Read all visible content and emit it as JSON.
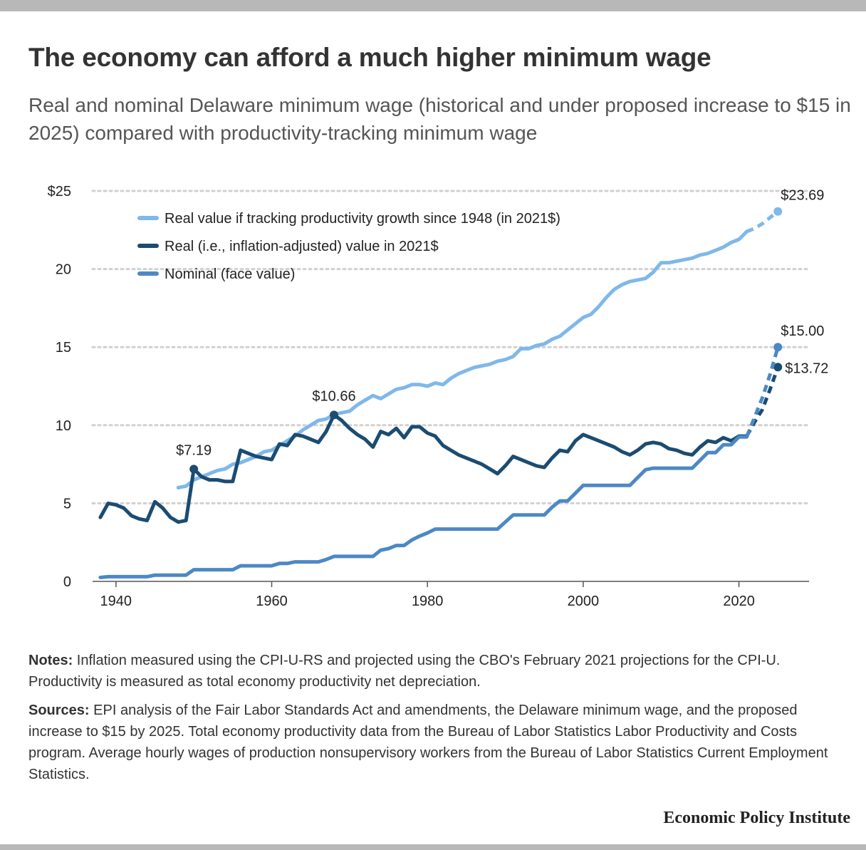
{
  "title": "The economy can afford a much higher minimum wage",
  "subtitle": "Real and nominal Delaware minimum wage (historical and under proposed increase to $15 in 2025) compared with productivity-tracking minimum wage",
  "notes": {
    "notes_label": "Notes:",
    "notes_text": "Inflation measured using the CPI-U-RS and projected using the CBO's February 2021 projections for the CPI-U. Productivity is measured as total economy productivity net depreciation.",
    "sources_label": "Sources:",
    "sources_text": "EPI analysis of the Fair Labor Standards Act and amendments, the Delaware minimum wage, and the proposed increase to $15 by 2025. Total economy productivity data from the Bureau of Labor Statistics Labor Productivity and Costs program. Average hourly wages of production nonsupervisory workers from the Bureau of Labor Statistics Current Employment Statistics."
  },
  "footer": "Economic Policy Institute",
  "chart_data": {
    "type": "line",
    "grid": true,
    "legend_position": "top-left",
    "xlim": [
      1937,
      2029
    ],
    "ylim": [
      0,
      25
    ],
    "x_ticks": [
      1940,
      1960,
      1980,
      2000,
      2020
    ],
    "y_ticks": [
      {
        "value": 0,
        "label": "0"
      },
      {
        "value": 5,
        "label": "5"
      },
      {
        "value": 10,
        "label": "10"
      },
      {
        "value": 15,
        "label": "15"
      },
      {
        "value": 20,
        "label": "20"
      },
      {
        "value": 25,
        "label": "$25"
      }
    ],
    "projection_start": 2021,
    "series": [
      {
        "name": "Real value if tracking productivity growth since 1948 (in 2021$)",
        "color": "#7fb8ea",
        "x": [
          1948,
          1949,
          1950,
          1951,
          1952,
          1953,
          1954,
          1955,
          1956,
          1957,
          1958,
          1959,
          1960,
          1961,
          1962,
          1963,
          1964,
          1965,
          1966,
          1967,
          1968,
          1969,
          1970,
          1971,
          1972,
          1973,
          1974,
          1975,
          1976,
          1977,
          1978,
          1979,
          1980,
          1981,
          1982,
          1983,
          1984,
          1985,
          1986,
          1987,
          1988,
          1989,
          1990,
          1991,
          1992,
          1993,
          1994,
          1995,
          1996,
          1997,
          1998,
          1999,
          2000,
          2001,
          2002,
          2003,
          2004,
          2005,
          2006,
          2007,
          2008,
          2009,
          2010,
          2011,
          2012,
          2013,
          2014,
          2015,
          2016,
          2017,
          2018,
          2019,
          2020,
          2021,
          2022,
          2023,
          2024,
          2025
        ],
        "values": [
          6.0,
          6.1,
          6.5,
          6.7,
          6.9,
          7.1,
          7.2,
          7.5,
          7.6,
          7.8,
          8.0,
          8.3,
          8.4,
          8.7,
          9.0,
          9.3,
          9.7,
          10.0,
          10.3,
          10.4,
          10.7,
          10.8,
          10.9,
          11.3,
          11.6,
          11.9,
          11.7,
          12.0,
          12.3,
          12.4,
          12.6,
          12.6,
          12.5,
          12.7,
          12.6,
          13.0,
          13.3,
          13.5,
          13.7,
          13.8,
          13.9,
          14.1,
          14.2,
          14.4,
          14.9,
          14.9,
          15.1,
          15.2,
          15.5,
          15.7,
          16.1,
          16.5,
          16.9,
          17.1,
          17.6,
          18.2,
          18.7,
          19.0,
          19.2,
          19.3,
          19.4,
          19.8,
          20.4,
          20.4,
          20.5,
          20.6,
          20.7,
          20.9,
          21.0,
          21.2,
          21.4,
          21.7,
          21.9,
          22.4,
          22.6,
          22.9,
          23.3,
          23.69
        ],
        "end_label": "$23.69"
      },
      {
        "name": "Real (i.e., inflation-adjusted) value in 2021$",
        "color": "#1b4c72",
        "x": [
          1938,
          1939,
          1940,
          1941,
          1942,
          1943,
          1944,
          1945,
          1946,
          1947,
          1948,
          1949,
          1950,
          1951,
          1952,
          1953,
          1954,
          1955,
          1956,
          1957,
          1958,
          1959,
          1960,
          1961,
          1962,
          1963,
          1964,
          1965,
          1966,
          1967,
          1968,
          1969,
          1970,
          1971,
          1972,
          1973,
          1974,
          1975,
          1976,
          1977,
          1978,
          1979,
          1980,
          1981,
          1982,
          1983,
          1984,
          1985,
          1986,
          1987,
          1988,
          1989,
          1990,
          1991,
          1992,
          1993,
          1994,
          1995,
          1996,
          1997,
          1998,
          1999,
          2000,
          2001,
          2002,
          2003,
          2004,
          2005,
          2006,
          2007,
          2008,
          2009,
          2010,
          2011,
          2012,
          2013,
          2014,
          2015,
          2016,
          2017,
          2018,
          2019,
          2020,
          2021,
          2022,
          2023,
          2024,
          2025
        ],
        "values": [
          4.1,
          5.0,
          4.9,
          4.7,
          4.2,
          4.0,
          3.9,
          5.1,
          4.7,
          4.1,
          3.8,
          3.9,
          7.19,
          6.7,
          6.5,
          6.5,
          6.4,
          6.4,
          8.4,
          8.2,
          8.0,
          7.9,
          7.8,
          8.8,
          8.7,
          9.4,
          9.3,
          9.1,
          8.9,
          9.6,
          10.66,
          10.3,
          9.8,
          9.4,
          9.1,
          8.6,
          9.6,
          9.4,
          9.8,
          9.2,
          9.9,
          9.9,
          9.5,
          9.3,
          8.7,
          8.4,
          8.1,
          7.9,
          7.7,
          7.5,
          7.2,
          6.9,
          7.4,
          8.0,
          7.8,
          7.6,
          7.4,
          7.3,
          7.9,
          8.4,
          8.3,
          9.0,
          9.4,
          9.2,
          9.0,
          8.8,
          8.6,
          8.3,
          8.1,
          8.4,
          8.8,
          8.9,
          8.8,
          8.5,
          8.4,
          8.2,
          8.1,
          8.6,
          9.0,
          8.9,
          9.2,
          9.0,
          9.3,
          9.3,
          10.2,
          11.0,
          12.3,
          13.72
        ],
        "point_labels": [
          {
            "x": 1950,
            "value": 7.19,
            "label": "$7.19"
          },
          {
            "x": 1968,
            "value": 10.66,
            "label": "$10.66"
          }
        ],
        "end_label": "$13.72"
      },
      {
        "name": "Nominal (face value)",
        "color": "#4d88c5",
        "x": [
          1938,
          1939,
          1940,
          1941,
          1942,
          1943,
          1944,
          1945,
          1946,
          1947,
          1948,
          1949,
          1950,
          1951,
          1952,
          1953,
          1954,
          1955,
          1956,
          1957,
          1958,
          1959,
          1960,
          1961,
          1962,
          1963,
          1964,
          1965,
          1966,
          1967,
          1968,
          1969,
          1970,
          1971,
          1972,
          1973,
          1974,
          1975,
          1976,
          1977,
          1978,
          1979,
          1980,
          1981,
          1982,
          1983,
          1984,
          1985,
          1986,
          1987,
          1988,
          1989,
          1990,
          1991,
          1992,
          1993,
          1994,
          1995,
          1996,
          1997,
          1998,
          1999,
          2000,
          2001,
          2002,
          2003,
          2004,
          2005,
          2006,
          2007,
          2008,
          2009,
          2010,
          2011,
          2012,
          2013,
          2014,
          2015,
          2016,
          2017,
          2018,
          2019,
          2020,
          2021,
          2022,
          2023,
          2024,
          2025
        ],
        "values": [
          0.25,
          0.3,
          0.3,
          0.3,
          0.3,
          0.3,
          0.3,
          0.4,
          0.4,
          0.4,
          0.4,
          0.4,
          0.75,
          0.75,
          0.75,
          0.75,
          0.75,
          0.75,
          1.0,
          1.0,
          1.0,
          1.0,
          1.0,
          1.15,
          1.15,
          1.25,
          1.25,
          1.25,
          1.25,
          1.4,
          1.6,
          1.6,
          1.6,
          1.6,
          1.6,
          1.6,
          2.0,
          2.1,
          2.3,
          2.3,
          2.65,
          2.9,
          3.1,
          3.35,
          3.35,
          3.35,
          3.35,
          3.35,
          3.35,
          3.35,
          3.35,
          3.35,
          3.8,
          4.25,
          4.25,
          4.25,
          4.25,
          4.25,
          4.75,
          5.15,
          5.15,
          5.65,
          6.15,
          6.15,
          6.15,
          6.15,
          6.15,
          6.15,
          6.15,
          6.65,
          7.15,
          7.25,
          7.25,
          7.25,
          7.25,
          7.25,
          7.25,
          7.75,
          8.25,
          8.25,
          8.75,
          8.75,
          9.25,
          9.25,
          10.5,
          11.75,
          13.25,
          15.0
        ],
        "end_label": "$15.00"
      }
    ]
  }
}
